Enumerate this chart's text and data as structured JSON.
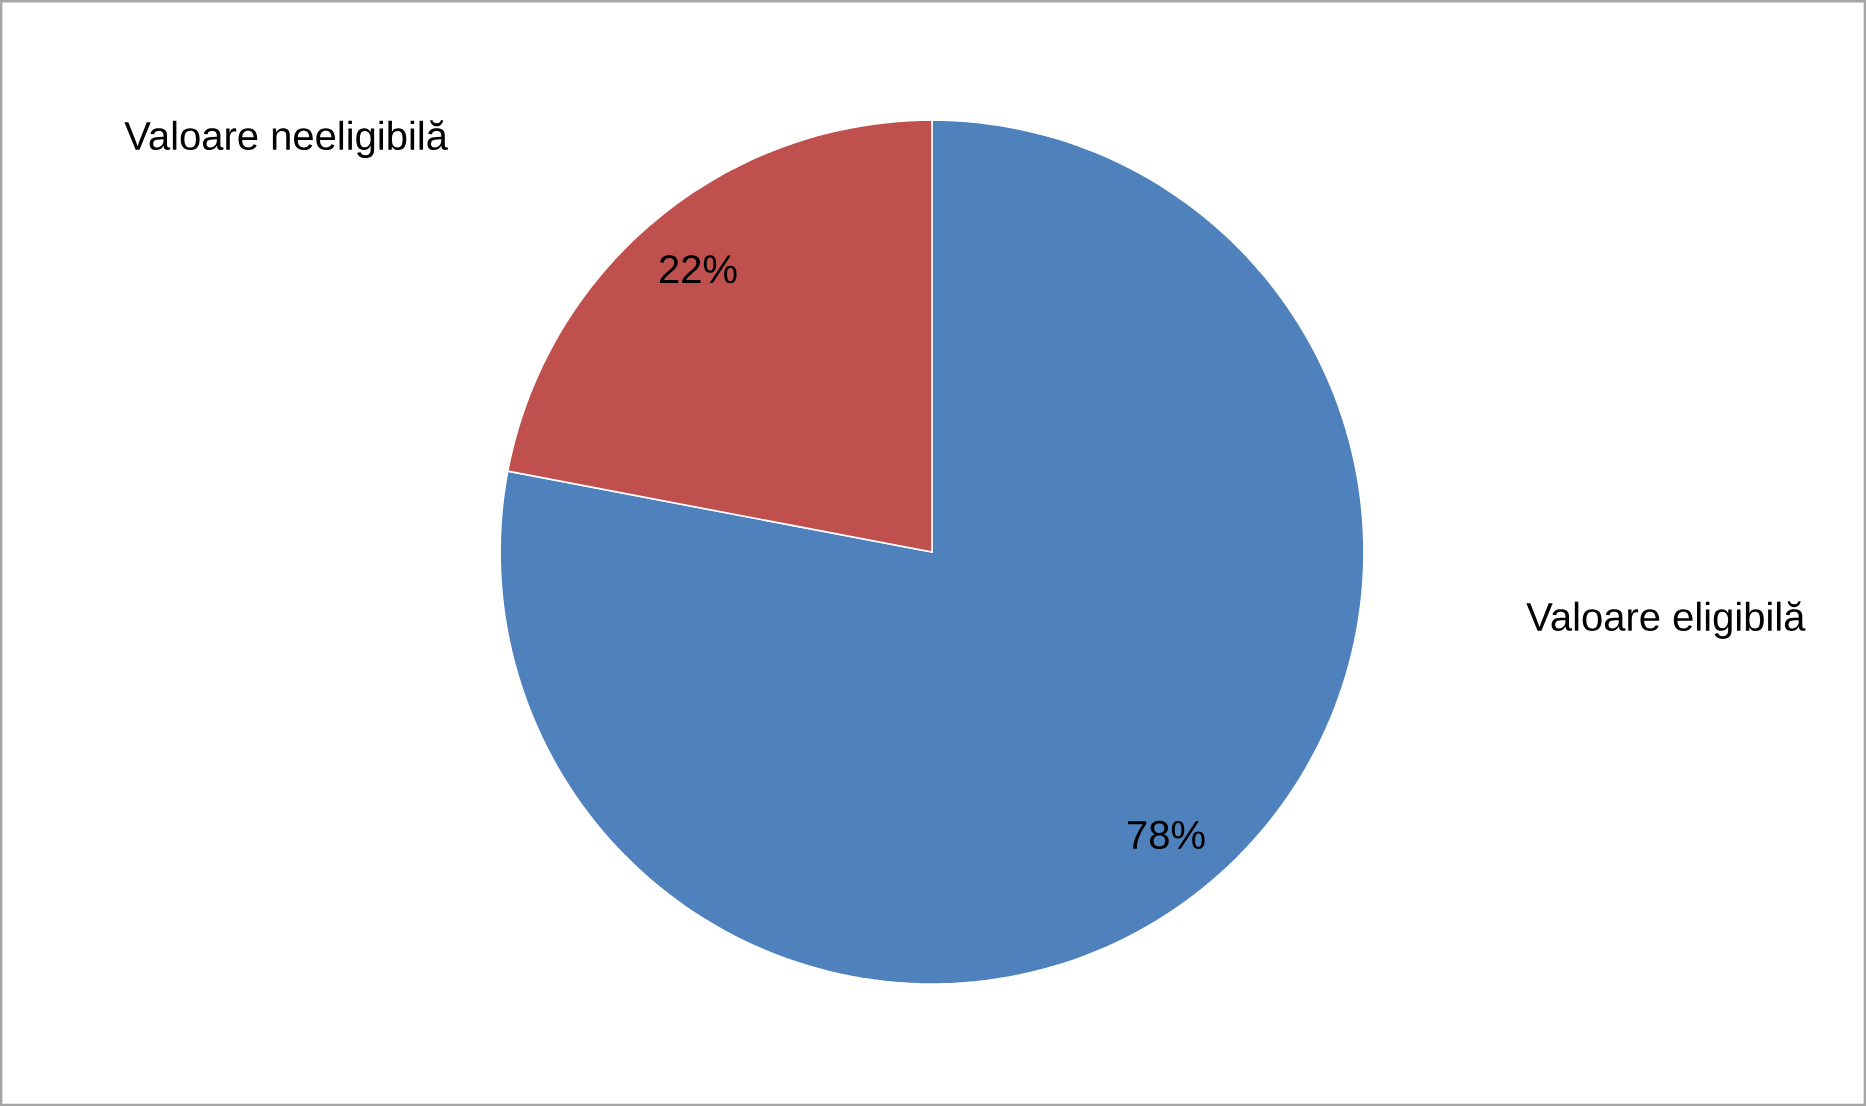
{
  "chart_data": {
    "type": "pie",
    "categories": [
      "Valoare eligibilă",
      "Valoare neeligibilă"
    ],
    "values": [
      78,
      22
    ],
    "value_labels": [
      "78%",
      "22%"
    ],
    "colors": [
      "#4f81bd",
      "#c0504d"
    ]
  }
}
